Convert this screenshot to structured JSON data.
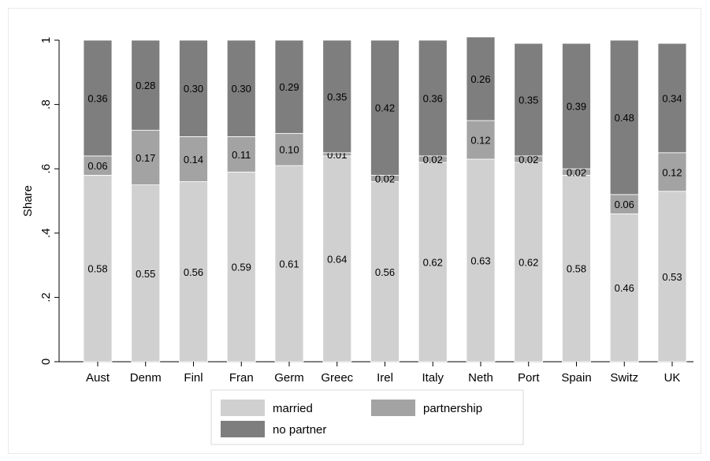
{
  "chart_data": {
    "type": "bar",
    "stacked": true,
    "title": "",
    "xlabel": "",
    "ylabel": "Share",
    "ylim": [
      0,
      1
    ],
    "yticks": [
      {
        "value": 0,
        "label": "0"
      },
      {
        "value": 0.2,
        "label": ".2"
      },
      {
        "value": 0.4,
        "label": ".4"
      },
      {
        "value": 0.6,
        "label": ".6"
      },
      {
        "value": 0.8,
        "label": ".8"
      },
      {
        "value": 1,
        "label": "1"
      }
    ],
    "grid": false,
    "legend_position": "bottom",
    "categories": [
      "Aust",
      "Denm",
      "Finl",
      "Fran",
      "Germ",
      "Greec",
      "Irel",
      "Italy",
      "Neth",
      "Port",
      "Spain",
      "Switz",
      "UK"
    ],
    "series": [
      {
        "name": "married",
        "color": "#d0d0d0",
        "values": [
          0.58,
          0.55,
          0.56,
          0.59,
          0.61,
          0.64,
          0.56,
          0.62,
          0.63,
          0.62,
          0.58,
          0.46,
          0.53
        ],
        "labels": [
          "0.58",
          "0.55",
          "0.56",
          "0.59",
          "0.61",
          "0.64",
          "0.56",
          "0.62",
          "0.63",
          "0.62",
          "0.58",
          "0.46",
          "0.53"
        ]
      },
      {
        "name": "partnership",
        "color": "#a3a3a3",
        "values": [
          0.06,
          0.17,
          0.14,
          0.11,
          0.1,
          0.01,
          0.02,
          0.02,
          0.12,
          0.02,
          0.02,
          0.06,
          0.12
        ],
        "labels": [
          "0.06",
          "0.17",
          "0.14",
          "0.11",
          "0.10",
          "0.01",
          "0.02",
          "0.02",
          "0.12",
          "0.02",
          "0.02",
          "0.06",
          "0.12"
        ]
      },
      {
        "name": "no partner",
        "color": "#7e7e7e",
        "values": [
          0.36,
          0.28,
          0.3,
          0.3,
          0.29,
          0.35,
          0.42,
          0.36,
          0.26,
          0.35,
          0.39,
          0.48,
          0.34
        ],
        "labels": [
          "0.36",
          "0.28",
          "0.30",
          "0.30",
          "0.29",
          "0.35",
          "0.42",
          "0.36",
          "0.26",
          "0.35",
          "0.39",
          "0.48",
          "0.34"
        ]
      }
    ]
  }
}
